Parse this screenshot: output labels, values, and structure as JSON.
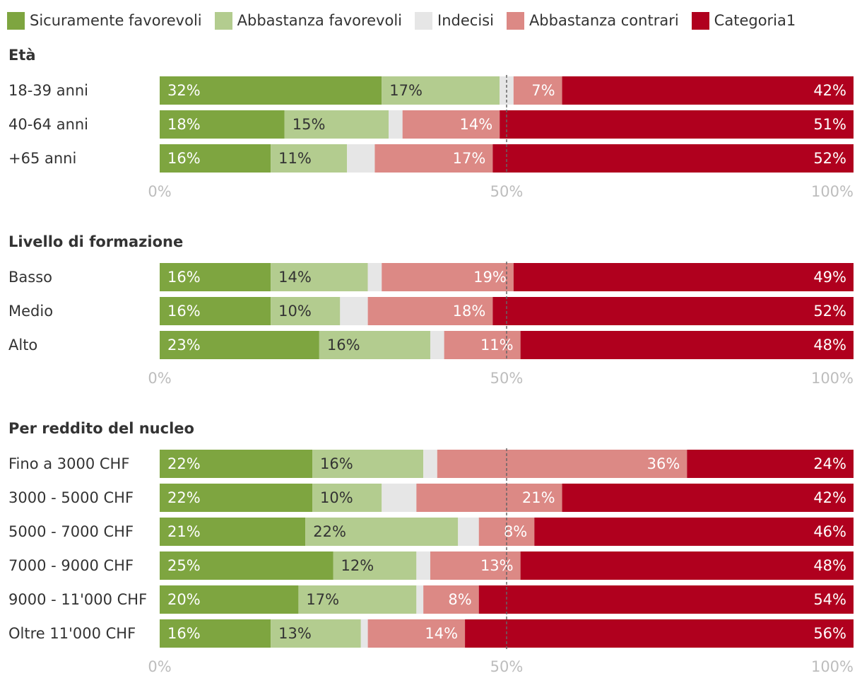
{
  "colors": {
    "sicuramente_favorevoli": "#7ea540",
    "abbastanza_favorevoli": "#b3cc8f",
    "indecisi": "#e6e6e6",
    "abbastanza_contrari": "#dc8985",
    "categoria1": "#b0001e",
    "text": "#333333",
    "axis_text": "#bdbdbd",
    "midline": "#666666"
  },
  "legend": [
    {
      "label": "Sicuramente favorevoli",
      "color": "#7ea540"
    },
    {
      "label": "Abbastanza favorevoli",
      "color": "#b3cc8f"
    },
    {
      "label": "Indecisi",
      "color": "#e6e6e6"
    },
    {
      "label": "Abbastanza contrari",
      "color": "#dc8985"
    },
    {
      "label": "Categoria1",
      "color": "#b0001e"
    }
  ],
  "chart_data": {
    "type": "bar",
    "orientation": "horizontal",
    "stacked": true,
    "series_names": [
      "Sicuramente favorevoli",
      "Abbastanza favorevoli",
      "Indecisi",
      "Abbastanza contrari",
      "Categoria1"
    ],
    "xlim": [
      0,
      100
    ],
    "x_ticks": [
      "0%",
      "50%",
      "100%"
    ],
    "reference_line": 50,
    "panels": [
      {
        "title": "Età",
        "categories": [
          "18-39 anni",
          "40-64 anni",
          "+65 anni"
        ],
        "values": [
          [
            32,
            17,
            2,
            7,
            42
          ],
          [
            18,
            15,
            2,
            14,
            51
          ],
          [
            16,
            11,
            4,
            17,
            52
          ]
        ]
      },
      {
        "title": "Livello di formazione",
        "categories": [
          "Basso",
          "Medio",
          "Alto"
        ],
        "values": [
          [
            16,
            14,
            2,
            19,
            49
          ],
          [
            16,
            10,
            4,
            18,
            52
          ],
          [
            23,
            16,
            2,
            11,
            48
          ]
        ]
      },
      {
        "title": "Per reddito del nucleo",
        "categories": [
          "Fino a 3000 CHF",
          "3000 - 5000 CHF",
          "5000 - 7000 CHF",
          "7000 - 9000 CHF",
          "9000 - 11'000 CHF",
          "Oltre 11'000 CHF"
        ],
        "values": [
          [
            22,
            16,
            2,
            36,
            24
          ],
          [
            22,
            10,
            5,
            21,
            42
          ],
          [
            21,
            22,
            3,
            8,
            46
          ],
          [
            25,
            12,
            2,
            13,
            48
          ],
          [
            20,
            17,
            1,
            8,
            54
          ],
          [
            16,
            13,
            1,
            14,
            56
          ]
        ]
      }
    ]
  }
}
